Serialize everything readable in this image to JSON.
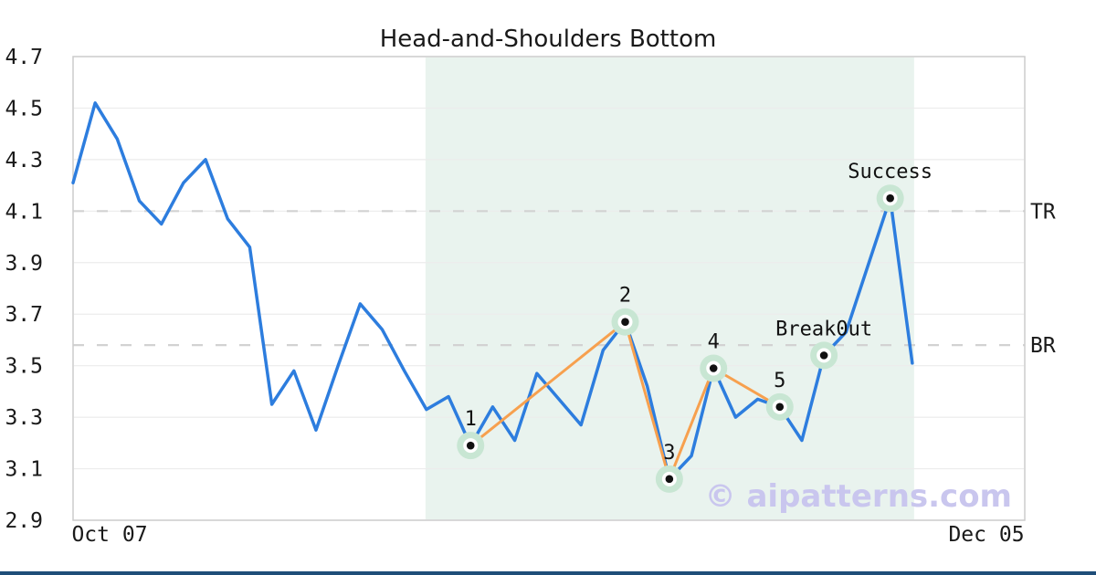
{
  "chart_data": {
    "type": "line",
    "title": "Head-and-Shoulders Bottom",
    "xlabel": "",
    "ylabel": "",
    "ylim": [
      2.9,
      4.7
    ],
    "yticks": [
      "2.9",
      "3.1",
      "3.3",
      "3.5",
      "3.7",
      "3.9",
      "4.1",
      "4.3",
      "4.5",
      "4.7"
    ],
    "xticks": [
      "Oct 07",
      "Dec 05"
    ],
    "grid": "horizontal",
    "legend": "none",
    "series": [
      {
        "name": "price",
        "values": [
          4.21,
          4.52,
          4.38,
          4.14,
          4.05,
          4.21,
          4.3,
          4.07,
          3.96,
          3.35,
          3.48,
          3.25,
          3.5,
          3.74,
          3.64,
          3.48,
          3.33,
          3.38,
          3.19,
          3.34,
          3.21,
          3.47,
          3.37,
          3.27,
          3.56,
          3.67,
          3.42,
          3.06,
          3.15,
          3.49,
          3.3,
          3.37,
          3.34,
          3.21,
          3.54,
          3.63,
          3.89,
          4.15,
          3.51
        ]
      }
    ],
    "pattern_points": [
      {
        "label": "1",
        "index": 18,
        "value": 3.19
      },
      {
        "label": "2",
        "index": 25,
        "value": 3.67
      },
      {
        "label": "3",
        "index": 27,
        "value": 3.06
      },
      {
        "label": "4",
        "index": 29,
        "value": 3.49
      },
      {
        "label": "5",
        "index": 32,
        "value": 3.34
      },
      {
        "label": "Break0ut",
        "index": 34,
        "value": 3.54
      },
      {
        "label": "Success",
        "index": 37,
        "value": 4.15
      }
    ],
    "trendline_indices": [
      18,
      25,
      27,
      29,
      32
    ],
    "shade_start_index": 16,
    "hlines": [
      {
        "label": "TR",
        "value": 4.1
      },
      {
        "label": "BR",
        "value": 3.58
      }
    ],
    "watermark": "© aipatterns.com",
    "colors": {
      "price_line": "#2d7dde",
      "trend_line": "#f7a04e",
      "marker_halo": "#c8e6d3",
      "marker_ring": "#ffffff",
      "marker_dot": "#111111",
      "shade": "#e9f3ee",
      "grid": "#ececec",
      "border": "#cccccc",
      "dashed_line": "#d2d2d2",
      "text": "#1a1a1a",
      "watermark": "#c9c6ee",
      "bottom_bar": "#1f4e79"
    }
  }
}
